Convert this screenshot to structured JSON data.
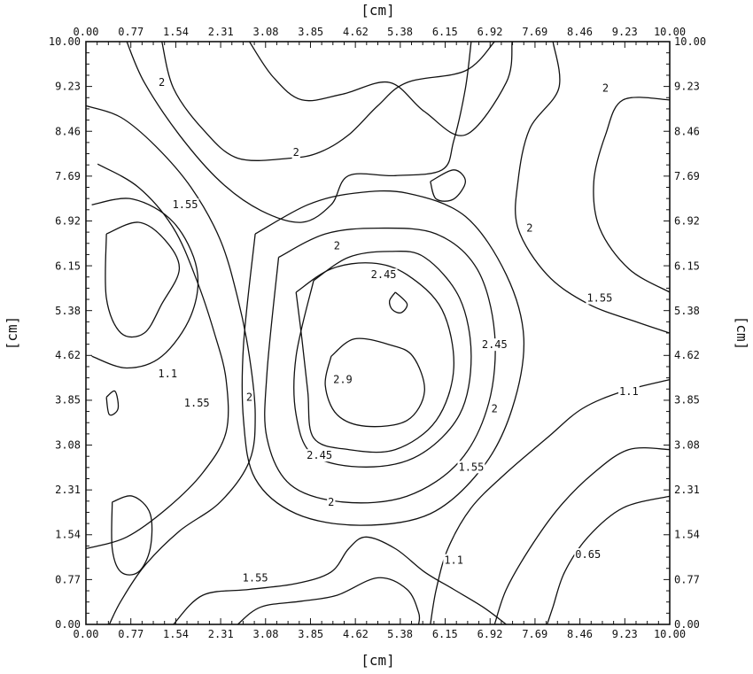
{
  "chart_data": {
    "type": "contour",
    "title": "",
    "xlabel": "[cm]",
    "ylabel": "[cm]",
    "xlim": [
      0,
      10
    ],
    "ylim": [
      0,
      10
    ],
    "ticks": [
      "0.00",
      "0.77",
      "1.54",
      "2.31",
      "3.08",
      "3.85",
      "4.62",
      "5.38",
      "6.15",
      "6.92",
      "7.69",
      "8.46",
      "9.23",
      "10.00"
    ],
    "tick_values": [
      0,
      0.77,
      1.54,
      2.31,
      3.08,
      3.85,
      4.62,
      5.38,
      6.15,
      6.92,
      7.69,
      8.46,
      9.23,
      10
    ],
    "grid": false,
    "contour_levels": [
      0.65,
      1.1,
      1.55,
      2,
      2.45,
      2.9
    ],
    "contour_labels": [
      {
        "text": "2",
        "x": 1.3,
        "y": 9.3
      },
      {
        "text": "2",
        "x": 3.6,
        "y": 8.1
      },
      {
        "text": "2",
        "x": 8.9,
        "y": 9.2
      },
      {
        "text": "1.55",
        "x": 1.7,
        "y": 7.2
      },
      {
        "text": "2",
        "x": 4.3,
        "y": 6.5
      },
      {
        "text": "2.45",
        "x": 5.1,
        "y": 6.0
      },
      {
        "text": "2",
        "x": 7.6,
        "y": 6.8
      },
      {
        "text": "1.55",
        "x": 8.8,
        "y": 5.6
      },
      {
        "text": "2.45",
        "x": 7.0,
        "y": 4.8
      },
      {
        "text": "2.9",
        "x": 4.4,
        "y": 4.2
      },
      {
        "text": "1.1",
        "x": 1.4,
        "y": 4.3
      },
      {
        "text": "1.55",
        "x": 1.9,
        "y": 3.8
      },
      {
        "text": "2",
        "x": 2.8,
        "y": 3.9
      },
      {
        "text": "1.1",
        "x": 9.3,
        "y": 4.0
      },
      {
        "text": "2",
        "x": 7.0,
        "y": 3.7
      },
      {
        "text": "2.45",
        "x": 4.0,
        "y": 2.9
      },
      {
        "text": "1.55",
        "x": 6.6,
        "y": 2.7
      },
      {
        "text": "2",
        "x": 4.2,
        "y": 2.1
      },
      {
        "text": "1.1",
        "x": 6.3,
        "y": 1.1
      },
      {
        "text": "0.65",
        "x": 8.6,
        "y": 1.2
      },
      {
        "text": "1.55",
        "x": 2.9,
        "y": 0.8
      }
    ],
    "contour_lines": [
      [
        [
          0.7,
          10
        ],
        [
          1.0,
          9.3
        ],
        [
          1.6,
          8.4
        ],
        [
          2.3,
          7.6
        ],
        [
          3.0,
          7.1
        ],
        [
          3.7,
          6.9
        ],
        [
          4.2,
          7.2
        ],
        [
          4.5,
          7.7
        ],
        [
          5.3,
          7.7
        ],
        [
          6.1,
          7.8
        ],
        [
          6.3,
          8.3
        ],
        [
          6.5,
          9.2
        ],
        [
          6.6,
          10
        ]
      ],
      [
        [
          2.8,
          10
        ],
        [
          3.2,
          9.4
        ],
        [
          3.7,
          9.0
        ],
        [
          4.4,
          9.1
        ],
        [
          5.2,
          9.3
        ],
        [
          5.8,
          8.8
        ],
        [
          6.5,
          8.4
        ],
        [
          7.2,
          9.3
        ],
        [
          7.3,
          10
        ]
      ],
      [
        [
          1.3,
          10
        ],
        [
          1.5,
          9.2
        ],
        [
          2.0,
          8.5
        ],
        [
          2.6,
          8.0
        ],
        [
          3.5,
          8.0
        ],
        [
          4.0,
          8.1
        ],
        [
          4.5,
          8.4
        ],
        [
          5.0,
          8.9
        ],
        [
          5.5,
          9.3
        ],
        [
          6.5,
          9.5
        ],
        [
          7.0,
          10
        ]
      ],
      [
        [
          8.0,
          10
        ],
        [
          8.1,
          9.2
        ],
        [
          7.6,
          8.5
        ],
        [
          7.4,
          7.6
        ],
        [
          7.4,
          6.8
        ],
        [
          7.9,
          6.0
        ],
        [
          8.6,
          5.5
        ],
        [
          9.4,
          5.2
        ],
        [
          10,
          5.0
        ]
      ],
      [
        [
          10,
          9.0
        ],
        [
          9.2,
          9.0
        ],
        [
          8.9,
          8.4
        ],
        [
          8.7,
          7.6
        ],
        [
          8.8,
          6.8
        ],
        [
          9.3,
          6.1
        ],
        [
          10,
          5.7
        ]
      ],
      [
        [
          0.2,
          7.9
        ],
        [
          0.9,
          7.5
        ],
        [
          1.5,
          6.8
        ],
        [
          1.9,
          5.9
        ],
        [
          2.2,
          5.0
        ],
        [
          2.4,
          4.2
        ],
        [
          2.4,
          3.3
        ],
        [
          2.0,
          2.6
        ],
        [
          1.4,
          2.0
        ],
        [
          0.7,
          1.5
        ],
        [
          0,
          1.3
        ]
      ],
      [
        [
          0,
          8.9
        ],
        [
          0.6,
          8.7
        ],
        [
          1.2,
          8.2
        ],
        [
          1.8,
          7.5
        ],
        [
          2.3,
          6.6
        ],
        [
          2.6,
          5.6
        ],
        [
          2.8,
          4.6
        ],
        [
          2.9,
          3.6
        ],
        [
          2.8,
          2.8
        ],
        [
          2.3,
          2.1
        ],
        [
          1.6,
          1.6
        ],
        [
          1.0,
          1.0
        ],
        [
          0.6,
          0.4
        ],
        [
          0.4,
          0
        ]
      ],
      [
        [
          0.35,
          6.7
        ],
        [
          0.9,
          6.9
        ],
        [
          1.35,
          6.6
        ],
        [
          1.6,
          6.1
        ],
        [
          1.3,
          5.5
        ],
        [
          1.0,
          5.0
        ],
        [
          0.6,
          5.0
        ],
        [
          0.35,
          5.6
        ],
        [
          0.35,
          6.7
        ]
      ],
      [
        [
          0.1,
          7.2
        ],
        [
          0.8,
          7.3
        ],
        [
          1.5,
          6.9
        ],
        [
          1.9,
          6.1
        ],
        [
          1.8,
          5.3
        ],
        [
          1.3,
          4.6
        ],
        [
          0.7,
          4.4
        ],
        [
          0.1,
          4.6
        ]
      ],
      [
        [
          3.9,
          5.9
        ],
        [
          4.5,
          6.3
        ],
        [
          5.2,
          6.4
        ],
        [
          5.8,
          6.3
        ],
        [
          6.4,
          5.6
        ],
        [
          6.6,
          4.6
        ],
        [
          6.4,
          3.6
        ],
        [
          5.7,
          2.9
        ],
        [
          4.8,
          2.7
        ],
        [
          3.9,
          2.9
        ],
        [
          3.6,
          3.6
        ],
        [
          3.6,
          4.6
        ],
        [
          3.9,
          5.9
        ]
      ],
      [
        [
          3.6,
          5.7
        ],
        [
          4.2,
          6.1
        ],
        [
          4.9,
          6.2
        ],
        [
          5.5,
          6.0
        ],
        [
          6.1,
          5.4
        ],
        [
          6.3,
          4.4
        ],
        [
          6.0,
          3.5
        ],
        [
          5.3,
          3.0
        ],
        [
          4.5,
          3.0
        ],
        [
          3.9,
          3.2
        ],
        [
          3.8,
          4.0
        ],
        [
          3.7,
          4.9
        ],
        [
          3.6,
          5.7
        ]
      ],
      [
        [
          4.2,
          4.6
        ],
        [
          4.6,
          4.9
        ],
        [
          5.2,
          4.8
        ],
        [
          5.6,
          4.6
        ],
        [
          5.8,
          4.0
        ],
        [
          5.5,
          3.5
        ],
        [
          4.8,
          3.4
        ],
        [
          4.3,
          3.6
        ],
        [
          4.1,
          4.1
        ],
        [
          4.2,
          4.6
        ]
      ],
      [
        [
          5.3,
          5.7
        ],
        [
          5.5,
          5.5
        ],
        [
          5.4,
          5.35
        ],
        [
          5.25,
          5.4
        ],
        [
          5.2,
          5.55
        ],
        [
          5.3,
          5.7
        ]
      ],
      [
        [
          3.3,
          6.3
        ],
        [
          4.1,
          6.7
        ],
        [
          5.0,
          6.8
        ],
        [
          6.0,
          6.7
        ],
        [
          6.7,
          6.1
        ],
        [
          7.0,
          5.0
        ],
        [
          6.9,
          3.8
        ],
        [
          6.4,
          2.8
        ],
        [
          5.5,
          2.2
        ],
        [
          4.4,
          2.1
        ],
        [
          3.5,
          2.4
        ],
        [
          3.1,
          3.2
        ],
        [
          3.1,
          4.3
        ],
        [
          3.3,
          6.3
        ]
      ],
      [
        [
          2.9,
          6.7
        ],
        [
          3.8,
          7.2
        ],
        [
          4.6,
          7.4
        ],
        [
          5.5,
          7.4
        ],
        [
          6.5,
          7.0
        ],
        [
          7.2,
          6.0
        ],
        [
          7.5,
          4.9
        ],
        [
          7.3,
          3.7
        ],
        [
          6.8,
          2.7
        ],
        [
          5.9,
          1.9
        ],
        [
          4.7,
          1.7
        ],
        [
          3.6,
          1.9
        ],
        [
          2.9,
          2.5
        ],
        [
          2.7,
          3.5
        ],
        [
          2.7,
          4.8
        ],
        [
          2.9,
          6.7
        ]
      ],
      [
        [
          5.9,
          7.6
        ],
        [
          6.3,
          7.8
        ],
        [
          6.5,
          7.6
        ],
        [
          6.3,
          7.3
        ],
        [
          6.0,
          7.3
        ],
        [
          5.9,
          7.6
        ]
      ],
      [
        [
          10,
          4.2
        ],
        [
          9.2,
          4.0
        ],
        [
          8.5,
          3.7
        ],
        [
          7.9,
          3.2
        ],
        [
          7.2,
          2.6
        ],
        [
          6.6,
          2.0
        ],
        [
          6.2,
          1.3
        ],
        [
          6.0,
          0.6
        ],
        [
          5.9,
          0
        ]
      ],
      [
        [
          10,
          3.0
        ],
        [
          9.3,
          3.0
        ],
        [
          8.7,
          2.6
        ],
        [
          8.1,
          2.0
        ],
        [
          7.6,
          1.3
        ],
        [
          7.2,
          0.6
        ],
        [
          7.0,
          0
        ]
      ],
      [
        [
          10,
          2.2
        ],
        [
          9.2,
          2.0
        ],
        [
          8.6,
          1.5
        ],
        [
          8.2,
          0.9
        ],
        [
          8.0,
          0.3
        ],
        [
          7.9,
          0
        ]
      ],
      [
        [
          0.45,
          2.1
        ],
        [
          0.8,
          2.2
        ],
        [
          1.1,
          1.9
        ],
        [
          1.1,
          1.3
        ],
        [
          0.9,
          0.9
        ],
        [
          0.6,
          0.9
        ],
        [
          0.45,
          1.3
        ],
        [
          0.45,
          2.1
        ]
      ],
      [
        [
          0.35,
          3.9
        ],
        [
          0.5,
          4.0
        ],
        [
          0.55,
          3.7
        ],
        [
          0.4,
          3.6
        ],
        [
          0.35,
          3.9
        ]
      ],
      [
        [
          1.5,
          0
        ],
        [
          2.0,
          0.5
        ],
        [
          2.8,
          0.6
        ],
        [
          3.6,
          0.7
        ],
        [
          4.2,
          0.9
        ],
        [
          4.5,
          1.3
        ],
        [
          4.8,
          1.5
        ],
        [
          5.3,
          1.3
        ],
        [
          5.8,
          0.9
        ],
        [
          6.3,
          0.6
        ],
        [
          6.8,
          0.3
        ],
        [
          7.2,
          0
        ]
      ],
      [
        [
          2.6,
          0
        ],
        [
          3.0,
          0.3
        ],
        [
          3.7,
          0.4
        ],
        [
          4.3,
          0.5
        ],
        [
          5.0,
          0.8
        ],
        [
          5.5,
          0.6
        ],
        [
          5.7,
          0.2
        ],
        [
          5.7,
          0
        ]
      ]
    ]
  }
}
